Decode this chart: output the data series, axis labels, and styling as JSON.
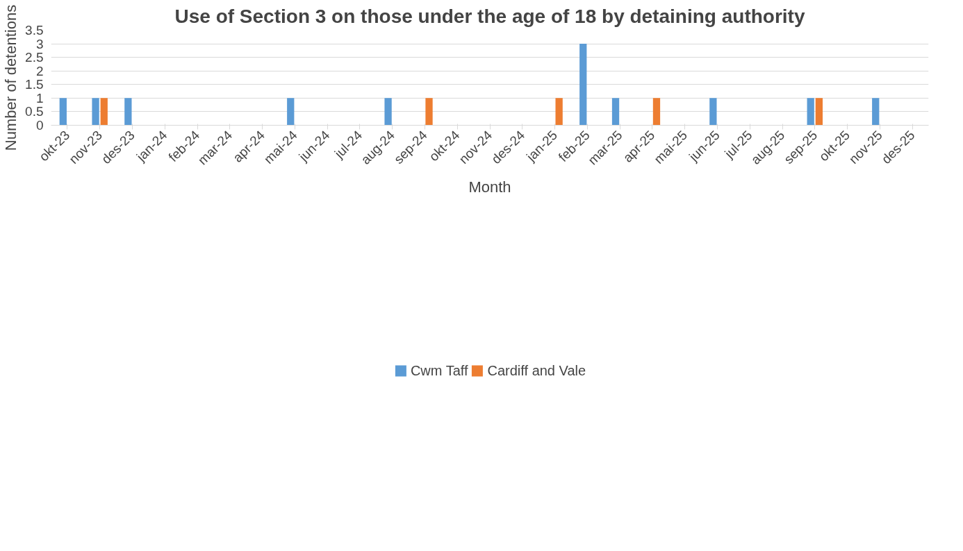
{
  "chart_data": {
    "type": "bar",
    "title": "Use of Section 3 on those under the age of 18 by detaining authority",
    "xlabel": "Month",
    "ylabel": "Number of detentions",
    "categories": [
      "okt-23",
      "nov-23",
      "des-23",
      "jan-24",
      "feb-24",
      "mar-24",
      "apr-24",
      "mai-24",
      "jun-24",
      "jul-24",
      "aug-24",
      "sep-24",
      "okt-24",
      "nov-24",
      "des-24",
      "jan-25",
      "feb-25",
      "mar-25",
      "apr-25",
      "mai-25",
      "jun-25",
      "jul-25",
      "aug-25",
      "sep-25",
      "okt-25",
      "nov-25",
      "des-25"
    ],
    "series": [
      {
        "name": "Cwm Taff",
        "color": "#5b9bd5",
        "values": [
          1,
          1,
          1,
          0,
          0,
          0,
          0,
          1,
          0,
          0,
          1,
          0,
          0,
          0,
          0,
          0,
          3,
          1,
          0,
          0,
          1,
          0,
          0,
          1,
          0,
          1,
          0
        ]
      },
      {
        "name": "Cardiff and Vale",
        "color": "#ed7d31",
        "values": [
          0,
          1,
          0,
          0,
          0,
          0,
          0,
          0,
          0,
          0,
          0,
          1,
          0,
          0,
          0,
          1,
          0,
          0,
          1,
          0,
          0,
          0,
          0,
          1,
          0,
          0,
          0
        ]
      }
    ],
    "ylim": [
      0,
      3.5
    ],
    "yticks": [
      0,
      0.5,
      1,
      1.5,
      2,
      2.5,
      3,
      3.5
    ],
    "grid": "y",
    "legend": "bottom"
  }
}
